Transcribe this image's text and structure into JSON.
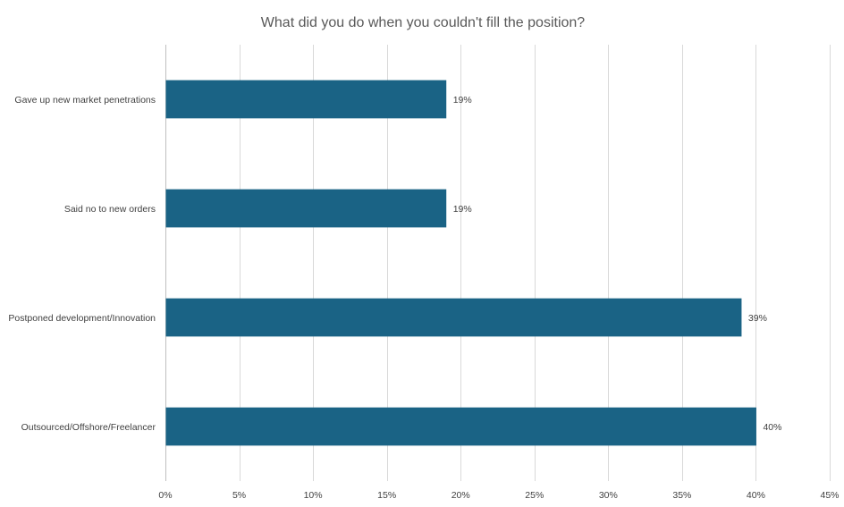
{
  "chart_data": {
    "type": "bar",
    "orientation": "horizontal",
    "title": "What did you do when you couldn't fill the position?",
    "categories": [
      "Gave up new market penetrations",
      "Said no to new orders",
      "Postponed development/Innovation",
      "Outsourced/Offshore/Freelancer"
    ],
    "values": [
      19,
      19,
      39,
      40
    ],
    "data_labels": [
      "19%",
      "19%",
      "39%",
      "40%"
    ],
    "xlim": [
      0,
      45
    ],
    "x_ticks": [
      0,
      5,
      10,
      15,
      20,
      25,
      30,
      35,
      40,
      45
    ],
    "x_tick_labels": [
      "0%",
      "5%",
      "10%",
      "15%",
      "20%",
      "25%",
      "30%",
      "35%",
      "40%",
      "45%"
    ],
    "xlabel": "",
    "ylabel": "",
    "grid": true,
    "legend": "none",
    "bar_color": "#1a6385"
  }
}
